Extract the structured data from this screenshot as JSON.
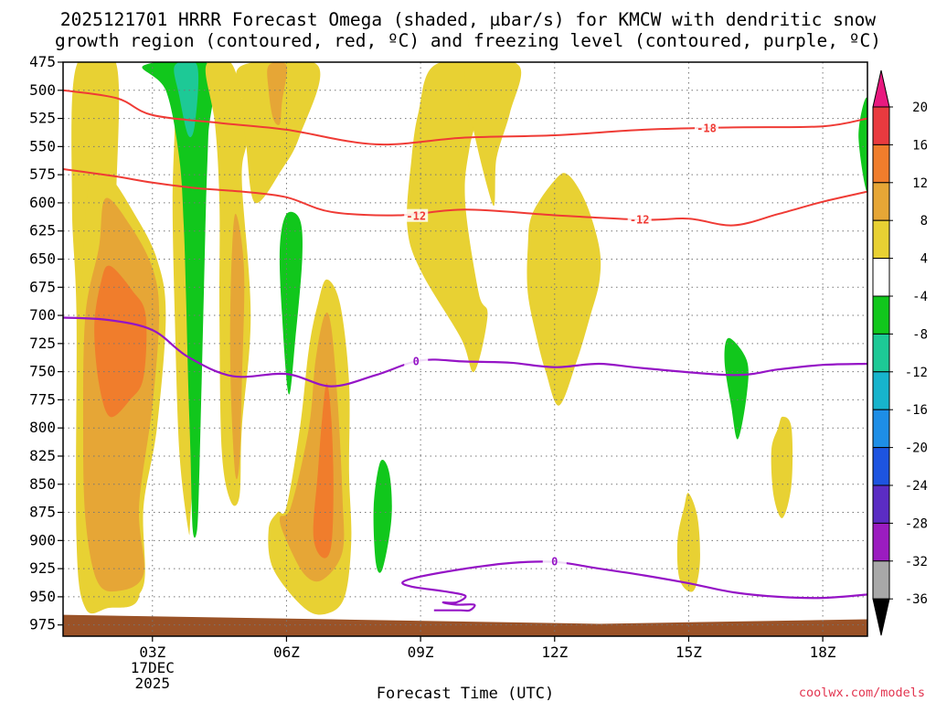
{
  "chart_data": {
    "type": "time-height cross section (shaded contour)",
    "title_line1": "2025121701 HRRR Forecast Omega (shaded, µbar/s) for KMCW with dendritic snow",
    "title_line2": "growth region (contoured, red, ºC) and freezing level (contoured, purple, ºC)",
    "xlabel": "Forecast Time (UTC)",
    "ylabel": "",
    "x_range_hours": [
      1,
      19
    ],
    "x_ticks": [
      {
        "hour": 3,
        "label": "03Z",
        "sub1": "17DEC",
        "sub2": "2025"
      },
      {
        "hour": 6,
        "label": "06Z"
      },
      {
        "hour": 9,
        "label": "09Z"
      },
      {
        "hour": 12,
        "label": "12Z"
      },
      {
        "hour": 15,
        "label": "15Z"
      },
      {
        "hour": 18,
        "label": "18Z"
      }
    ],
    "y_ticks_hpa": [
      475,
      500,
      525,
      550,
      575,
      600,
      625,
      650,
      675,
      700,
      725,
      750,
      775,
      800,
      825,
      850,
      875,
      900,
      925,
      950,
      975
    ],
    "y_range_hpa": [
      475,
      985
    ],
    "colorbar": {
      "labels": [
        20,
        16,
        12,
        8,
        4,
        -4,
        -8,
        -12,
        -16,
        -20,
        -24,
        -28,
        -32,
        -36
      ],
      "colors": [
        "#e93a3f",
        "#f07d2c",
        "#e6a636",
        "#e8d133",
        "#ffffff",
        "#11c71c",
        "#1dc996",
        "#17b4cc",
        "#1e8ee6",
        "#1d54e0",
        "#5b2cc4",
        "#9b1cc0",
        "#a8a8a8"
      ],
      "top_triangle_color": "#e8197f",
      "bottom_triangle_color": "#000000"
    },
    "contour_labels": {
      "dgz_upper": "-18",
      "dgz_lower": "-12",
      "freezing": "0"
    },
    "dgz_minus18_line": [
      [
        1,
        500
      ],
      [
        2.2,
        507
      ],
      [
        3,
        522
      ],
      [
        4.5,
        529
      ],
      [
        6,
        535
      ],
      [
        8,
        548
      ],
      [
        10,
        542
      ],
      [
        12,
        540
      ],
      [
        14,
        535
      ],
      [
        16,
        533
      ],
      [
        18,
        532
      ],
      [
        19,
        525
      ]
    ],
    "dgz_minus12_line": [
      [
        1,
        570
      ],
      [
        2.1,
        576
      ],
      [
        3,
        582
      ],
      [
        4,
        587
      ],
      [
        5,
        590
      ],
      [
        6,
        595
      ],
      [
        7,
        608
      ],
      [
        8.5,
        611
      ],
      [
        10,
        606
      ],
      [
        12,
        611
      ],
      [
        14,
        615
      ],
      [
        15,
        614
      ],
      [
        16,
        620
      ],
      [
        17,
        610
      ],
      [
        18,
        599
      ],
      [
        19,
        590
      ]
    ],
    "freezing_line_upper": [
      [
        1,
        702
      ],
      [
        2,
        704
      ],
      [
        3,
        713
      ],
      [
        3.8,
        737
      ],
      [
        4.8,
        754
      ],
      [
        6,
        752
      ],
      [
        7,
        763
      ],
      [
        8,
        753
      ],
      [
        9,
        740
      ],
      [
        10,
        741
      ],
      [
        11,
        742
      ],
      [
        12,
        746
      ],
      [
        13,
        743
      ],
      [
        14,
        747
      ],
      [
        16,
        753
      ],
      [
        17,
        748
      ],
      [
        18,
        744
      ],
      [
        19,
        743
      ]
    ],
    "freezing_line_lower": [
      [
        19,
        948
      ],
      [
        18,
        951
      ],
      [
        17,
        950
      ],
      [
        16,
        946
      ],
      [
        15,
        938
      ],
      [
        14,
        931
      ],
      [
        13,
        925
      ],
      [
        12,
        919
      ],
      [
        11,
        920
      ],
      [
        10,
        925
      ],
      [
        9,
        932
      ],
      [
        8.6,
        937
      ],
      [
        8.8,
        941
      ],
      [
        9.5,
        945
      ],
      [
        10,
        949
      ],
      [
        9.8,
        955
      ],
      [
        9.5,
        955
      ],
      [
        9.8,
        957
      ],
      [
        10.2,
        957
      ],
      [
        10.1,
        962
      ],
      [
        9.9,
        962
      ],
      [
        9.3,
        962
      ]
    ],
    "omega_regions": [
      {
        "level": 4,
        "color": "#e8d133",
        "pts": [
          [
            1.3,
            478
          ],
          [
            2.2,
            478
          ],
          [
            2.2,
            630
          ],
          [
            2.7,
            665
          ],
          [
            2.8,
            730
          ],
          [
            2.55,
            800
          ],
          [
            2.5,
            880
          ],
          [
            2.7,
            950
          ],
          [
            2,
            960
          ],
          [
            1.5,
            960
          ],
          [
            1.3,
            900
          ],
          [
            1.3,
            700
          ],
          [
            1.2,
            600
          ]
        ]
      },
      {
        "level": 4,
        "color": "#e8d133",
        "pts": [
          [
            1.6,
            580
          ],
          [
            2.0,
            575
          ],
          [
            2.6,
            610
          ],
          [
            3.1,
            650
          ],
          [
            3.3,
            700
          ],
          [
            3.1,
            800
          ],
          [
            2.8,
            870
          ],
          [
            2.8,
            940
          ],
          [
            2.2,
            955
          ],
          [
            1.6,
            950
          ],
          [
            1.4,
            880
          ],
          [
            1.35,
            760
          ],
          [
            1.45,
            650
          ]
        ]
      },
      {
        "level": 8,
        "color": "#e6a636",
        "pts": [
          [
            1.95,
            596
          ],
          [
            2.5,
            620
          ],
          [
            3.0,
            658
          ],
          [
            3.15,
            700
          ],
          [
            3.0,
            780
          ],
          [
            2.7,
            870
          ],
          [
            2.8,
            930
          ],
          [
            2.2,
            945
          ],
          [
            1.75,
            935
          ],
          [
            1.5,
            880
          ],
          [
            1.45,
            800
          ],
          [
            1.5,
            700
          ],
          [
            1.8,
            640
          ]
        ]
      },
      {
        "level": 12,
        "color": "#f07d2c",
        "pts": [
          [
            2.05,
            656
          ],
          [
            2.55,
            678
          ],
          [
            2.85,
            700
          ],
          [
            2.8,
            755
          ],
          [
            2.5,
            775
          ],
          [
            2.05,
            790
          ],
          [
            1.8,
            760
          ],
          [
            1.7,
            710
          ],
          [
            1.85,
            670
          ]
        ]
      },
      {
        "level": 4,
        "color": "#e8d133",
        "pts": [
          [
            3.5,
            478
          ],
          [
            4.2,
            478
          ],
          [
            4.0,
            520
          ],
          [
            3.95,
            580
          ],
          [
            4.1,
            640
          ],
          [
            4.05,
            720
          ],
          [
            3.95,
            800
          ],
          [
            3.85,
            880
          ],
          [
            3.8,
            890
          ],
          [
            3.6,
            820
          ],
          [
            3.5,
            700
          ],
          [
            3.45,
            600
          ],
          [
            3.5,
            530
          ]
        ]
      },
      {
        "level": -4,
        "color": "#11c71c",
        "pts": [
          [
            2.8,
            478
          ],
          [
            4.3,
            478
          ],
          [
            4.25,
            540
          ],
          [
            4.2,
            600
          ],
          [
            4.15,
            680
          ],
          [
            4.1,
            760
          ],
          [
            4.05,
            840
          ],
          [
            4.0,
            890
          ],
          [
            3.9,
            890
          ],
          [
            3.85,
            820
          ],
          [
            3.8,
            760
          ],
          [
            3.75,
            680
          ],
          [
            3.7,
            620
          ],
          [
            3.6,
            560
          ],
          [
            3.3,
            500
          ]
        ]
      },
      {
        "level": -8,
        "color": "#1dc996",
        "pts": [
          [
            3.5,
            478
          ],
          [
            4.0,
            478
          ],
          [
            3.95,
            530
          ],
          [
            3.8,
            540
          ],
          [
            3.6,
            505
          ]
        ]
      },
      {
        "level": 4,
        "color": "#e8d133",
        "pts": [
          [
            4.2,
            478
          ],
          [
            4.8,
            478
          ],
          [
            5.1,
            540
          ],
          [
            5.0,
            580
          ],
          [
            5.2,
            700
          ],
          [
            5.0,
            800
          ],
          [
            4.95,
            860
          ],
          [
            4.75,
            865
          ],
          [
            4.55,
            820
          ],
          [
            4.5,
            700
          ],
          [
            4.5,
            600
          ],
          [
            4.4,
            530
          ]
        ]
      },
      {
        "level": 8,
        "color": "#e6a636",
        "pts": [
          [
            4.85,
            610
          ],
          [
            5.05,
            660
          ],
          [
            5.0,
            760
          ],
          [
            4.95,
            830
          ],
          [
            4.85,
            840
          ],
          [
            4.75,
            760
          ],
          [
            4.75,
            680
          ]
        ]
      },
      {
        "level": 4,
        "color": "#e8d133",
        "pts": [
          [
            5.0,
            478
          ],
          [
            6.7,
            478
          ],
          [
            6.3,
            540
          ],
          [
            5.9,
            570
          ],
          [
            5.3,
            600
          ],
          [
            5.1,
            550
          ],
          [
            5.0,
            510
          ]
        ]
      },
      {
        "level": 8,
        "color": "#e6a636",
        "pts": [
          [
            5.6,
            478
          ],
          [
            6.0,
            478
          ],
          [
            5.9,
            510
          ],
          [
            5.85,
            530
          ],
          [
            5.7,
            525
          ],
          [
            5.6,
            500
          ]
        ]
      },
      {
        "level": -4,
        "color": "#11c71c",
        "pts": [
          [
            6.0,
            610
          ],
          [
            6.3,
            615
          ],
          [
            6.35,
            650
          ],
          [
            6.2,
            720
          ],
          [
            6.05,
            770
          ],
          [
            5.9,
            700
          ],
          [
            5.85,
            640
          ]
        ]
      },
      {
        "level": 4,
        "color": "#e8d133",
        "pts": [
          [
            6.9,
            668
          ],
          [
            7.2,
            690
          ],
          [
            7.4,
            760
          ],
          [
            7.4,
            840
          ],
          [
            7.45,
            900
          ],
          [
            7.3,
            950
          ],
          [
            6.9,
            965
          ],
          [
            6.4,
            960
          ],
          [
            5.7,
            925
          ],
          [
            5.6,
            890
          ],
          [
            5.8,
            875
          ],
          [
            6.0,
            870
          ],
          [
            6.3,
            800
          ],
          [
            6.5,
            730
          ],
          [
            6.7,
            690
          ]
        ]
      },
      {
        "level": 8,
        "color": "#e6a636",
        "pts": [
          [
            6.85,
            700
          ],
          [
            7.0,
            710
          ],
          [
            7.15,
            780
          ],
          [
            7.25,
            860
          ],
          [
            7.25,
            910
          ],
          [
            6.8,
            935
          ],
          [
            6.4,
            930
          ],
          [
            6.0,
            900
          ],
          [
            5.85,
            880
          ],
          [
            6.1,
            870
          ],
          [
            6.5,
            800
          ],
          [
            6.65,
            740
          ]
        ]
      },
      {
        "level": 12,
        "color": "#f07d2c",
        "pts": [
          [
            6.9,
            760
          ],
          [
            7.0,
            790
          ],
          [
            7.05,
            850
          ],
          [
            7.0,
            905
          ],
          [
            6.8,
            915
          ],
          [
            6.6,
            895
          ],
          [
            6.7,
            840
          ],
          [
            6.8,
            790
          ]
        ]
      },
      {
        "level": -4,
        "color": "#11c71c",
        "pts": [
          [
            8.1,
            830
          ],
          [
            8.3,
            840
          ],
          [
            8.35,
            880
          ],
          [
            8.15,
            925
          ],
          [
            8.0,
            920
          ],
          [
            7.95,
            870
          ]
        ]
      },
      {
        "level": 4,
        "color": "#e8d133",
        "pts": [
          [
            9.3,
            478
          ],
          [
            10.5,
            478
          ],
          [
            10.1,
            550
          ],
          [
            10.0,
            600
          ],
          [
            10.3,
            680
          ],
          [
            10.5,
            700
          ],
          [
            10.2,
            750
          ],
          [
            9.9,
            720
          ],
          [
            9.0,
            660
          ],
          [
            8.7,
            620
          ],
          [
            8.8,
            560
          ],
          [
            8.95,
            520
          ]
        ]
      },
      {
        "level": 4,
        "color": "#e8d133",
        "pts": [
          [
            10.0,
            478
          ],
          [
            11.2,
            478
          ],
          [
            11.0,
            520
          ],
          [
            10.7,
            560
          ],
          [
            10.6,
            600
          ]
        ]
      },
      {
        "level": 4,
        "color": "#e8d133",
        "pts": [
          [
            12.3,
            575
          ],
          [
            12.7,
            600
          ],
          [
            13.0,
            640
          ],
          [
            13.0,
            670
          ],
          [
            12.8,
            700
          ],
          [
            12.5,
            740
          ],
          [
            12.1,
            780
          ],
          [
            11.8,
            750
          ],
          [
            11.6,
            720
          ],
          [
            11.4,
            680
          ],
          [
            11.4,
            640
          ],
          [
            11.5,
            610
          ],
          [
            12.0,
            580
          ]
        ]
      },
      {
        "level": -4,
        "color": "#11c71c",
        "pts": [
          [
            15.9,
            720
          ],
          [
            16.3,
            740
          ],
          [
            16.3,
            770
          ],
          [
            16.1,
            810
          ],
          [
            15.95,
            780
          ],
          [
            15.8,
            740
          ]
        ]
      },
      {
        "level": 4,
        "color": "#e8d133",
        "pts": [
          [
            17.1,
            790
          ],
          [
            17.3,
            800
          ],
          [
            17.3,
            850
          ],
          [
            17.1,
            880
          ],
          [
            16.9,
            860
          ],
          [
            16.85,
            820
          ],
          [
            17.0,
            800
          ]
        ]
      },
      {
        "level": 4,
        "color": "#e8d133",
        "pts": [
          [
            15.0,
            858
          ],
          [
            15.2,
            880
          ],
          [
            15.25,
            920
          ],
          [
            15.1,
            945
          ],
          [
            14.8,
            935
          ],
          [
            14.75,
            900
          ],
          [
            14.9,
            870
          ]
        ]
      },
      {
        "level": -4,
        "color": "#11c71c",
        "pts": [
          [
            19,
            508
          ],
          [
            18.8,
            540
          ],
          [
            19,
            590
          ]
        ]
      }
    ],
    "ground_color": "#9a5227",
    "credit": "coolwx.com/models"
  }
}
